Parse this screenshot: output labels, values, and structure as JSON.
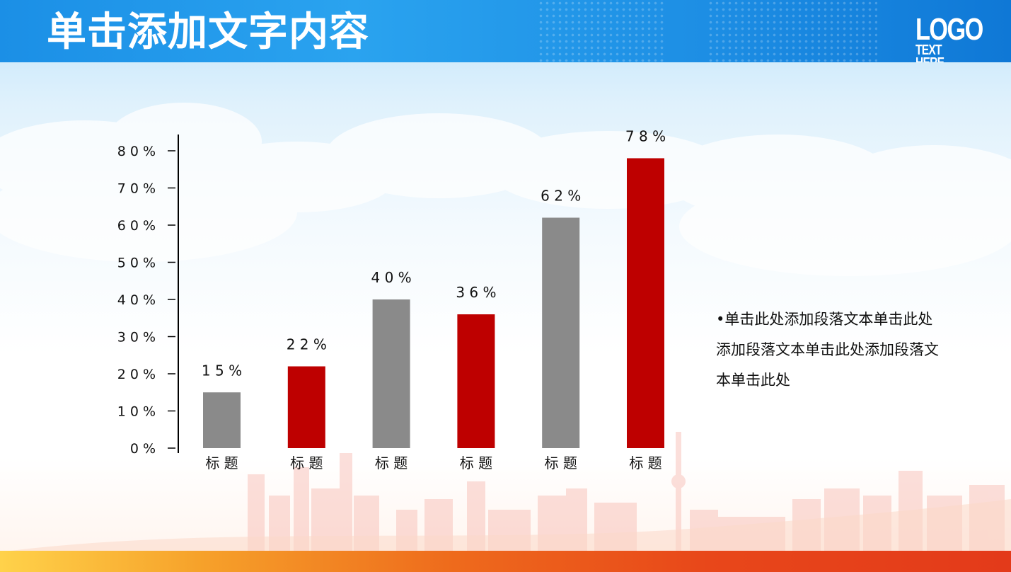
{
  "slide": {
    "title": "单击添加文字内容",
    "logo_main": "LOGO",
    "logo_sub": "TEXT HERE",
    "note": "•单击此处添加段落文本单击此处添加段落文本单击此处添加段落文本单击此处"
  },
  "colors": {
    "header_blue": "#1b8fe6",
    "series_gray": "#8a8a8a",
    "series_red": "#be0000"
  },
  "chart_data": {
    "type": "bar",
    "categories": [
      "标 题",
      "标 题",
      "标 题",
      "标 题",
      "标 题",
      "标 题"
    ],
    "values": [
      15,
      22,
      40,
      36,
      62,
      78
    ],
    "value_labels": [
      "1 5 %",
      "2 2 %",
      "4 0 %",
      "3 6 %",
      "6 2 %",
      "7 8 %"
    ],
    "bar_colors": [
      "#8a8a8a",
      "#be0000",
      "#8a8a8a",
      "#be0000",
      "#8a8a8a",
      "#be0000"
    ],
    "ylim": [
      0,
      80
    ],
    "yticks": [
      0,
      10,
      20,
      30,
      40,
      50,
      60,
      70,
      80
    ],
    "ytick_labels": [
      "0 %",
      "1 0 %",
      "2 0 %",
      "3 0 %",
      "4 0 %",
      "5 0 %",
      "6 0 %",
      "7 0 %",
      "8 0 %"
    ],
    "grid": false,
    "legend": "none"
  }
}
